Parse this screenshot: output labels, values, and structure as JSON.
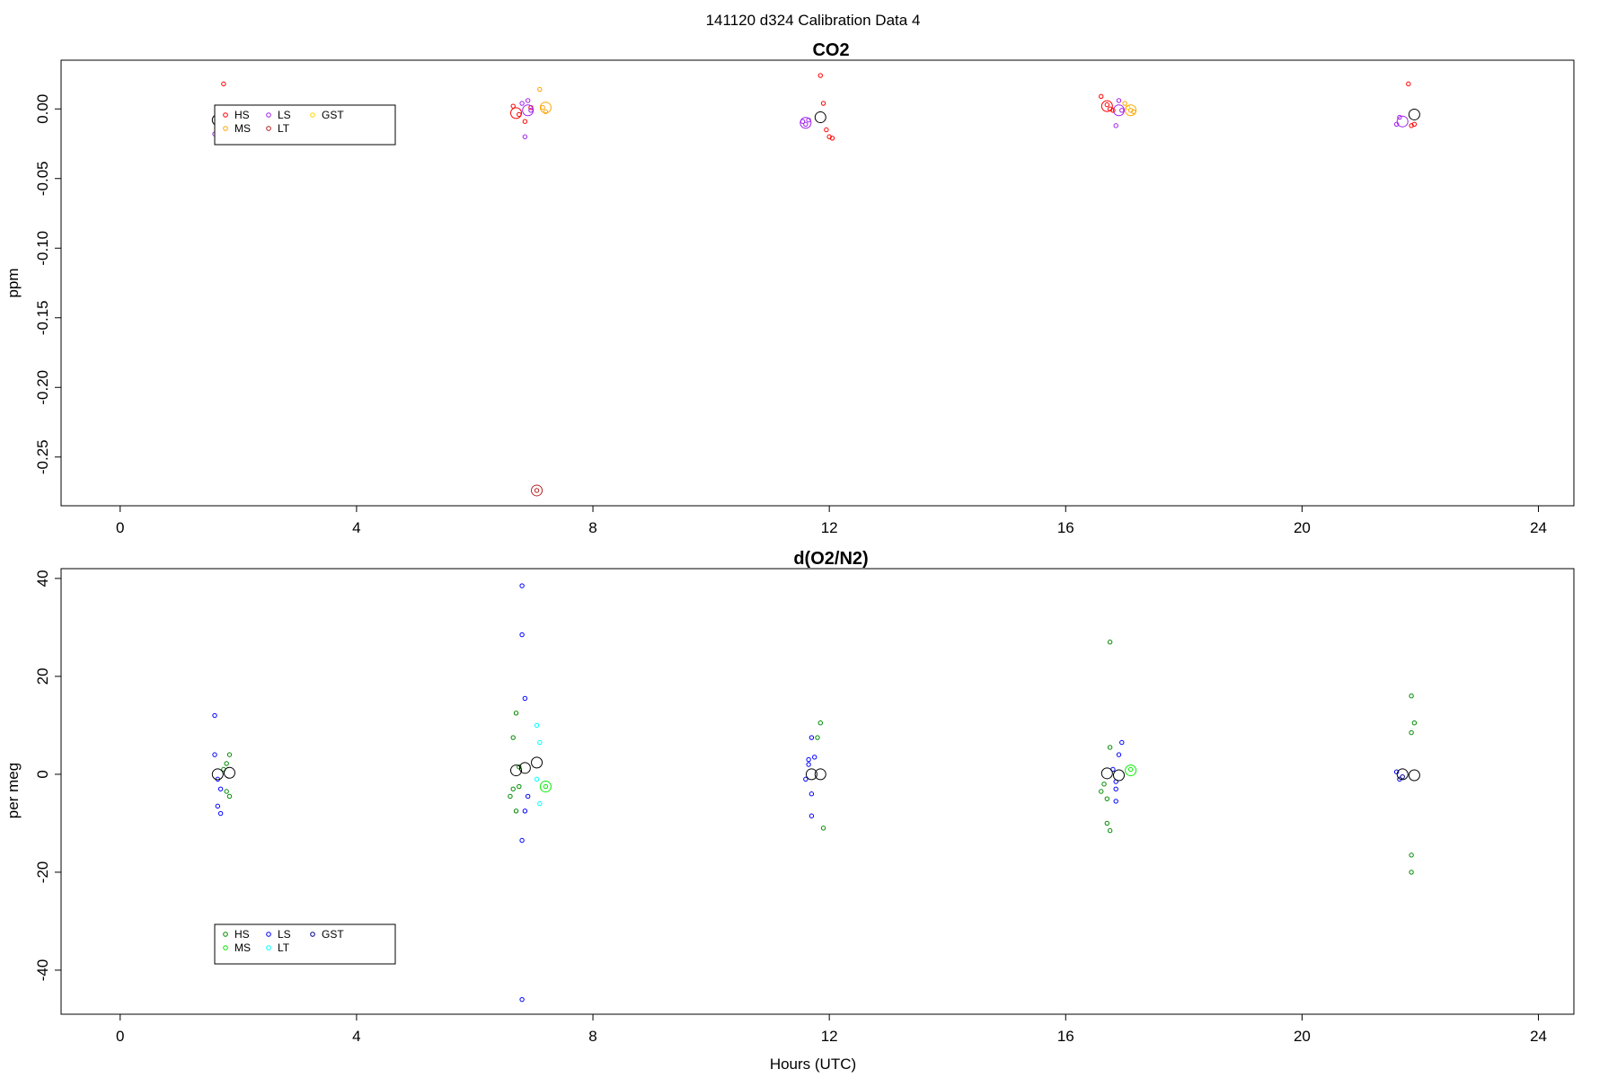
{
  "main_title": "141120   d324   Calibration Data 4",
  "chart_data": [
    {
      "type": "scatter",
      "title": "CO2",
      "xlabel": "",
      "ylabel": "ppm",
      "xlim": [
        -1,
        24.6
      ],
      "ylim": [
        -0.285,
        0.035
      ],
      "x_ticks": [
        0,
        4,
        8,
        12,
        16,
        20,
        24
      ],
      "y_ticks": [
        0.0,
        -0.05,
        -0.1,
        -0.15,
        -0.2,
        -0.25
      ],
      "y_tick_labels": [
        "0.00",
        "-0.05",
        "-0.10",
        "-0.15",
        "-0.20",
        "-0.25"
      ],
      "legend": {
        "placement": "top-left",
        "entries": [
          {
            "label": "HS",
            "color": "#ff0000"
          },
          {
            "label": "MS",
            "color": "#ffa500"
          },
          {
            "label": "LS",
            "color": "#a020f0"
          },
          {
            "label": "LT",
            "color": "#b22222"
          },
          {
            "label": "GST",
            "color": "#ffd700"
          }
        ]
      },
      "series": [
        {
          "name": "HS",
          "color": "#ff0000",
          "points": [
            [
              1.75,
              0.018
            ],
            [
              6.65,
              0.002
            ],
            [
              6.75,
              -0.004
            ],
            [
              6.85,
              -0.009
            ],
            [
              6.95,
              0.001
            ],
            [
              11.85,
              0.024
            ],
            [
              11.9,
              0.004
            ],
            [
              11.95,
              -0.015
            ],
            [
              12.0,
              -0.02
            ],
            [
              12.05,
              -0.021
            ],
            [
              16.6,
              0.009
            ],
            [
              16.7,
              0.003
            ],
            [
              16.75,
              0.0
            ],
            [
              16.8,
              -0.001
            ],
            [
              21.8,
              0.018
            ],
            [
              21.85,
              -0.012
            ],
            [
              21.9,
              -0.011
            ]
          ]
        },
        {
          "name": "MS",
          "color": "#ffa500",
          "points": [
            [
              7.1,
              0.014
            ],
            [
              7.15,
              0.001
            ],
            [
              7.2,
              -0.002
            ],
            [
              17.0,
              0.004
            ],
            [
              17.1,
              -0.001
            ],
            [
              17.15,
              -0.002
            ]
          ]
        },
        {
          "name": "LS",
          "color": "#a020f0",
          "points": [
            [
              1.6,
              -0.018
            ],
            [
              1.65,
              -0.008
            ],
            [
              1.7,
              -0.01
            ],
            [
              6.8,
              0.004
            ],
            [
              6.85,
              -0.02
            ],
            [
              6.9,
              0.006
            ],
            [
              6.95,
              -0.001
            ],
            [
              11.55,
              -0.009
            ],
            [
              11.6,
              -0.011
            ],
            [
              11.65,
              -0.008
            ],
            [
              16.85,
              -0.012
            ],
            [
              16.9,
              0.006
            ],
            [
              16.95,
              -0.001
            ],
            [
              21.6,
              -0.011
            ],
            [
              21.65,
              -0.006
            ]
          ]
        },
        {
          "name": "LT",
          "color": "#b22222",
          "points": [
            [
              7.05,
              -0.274
            ]
          ]
        },
        {
          "name": "GST",
          "color": "#ffd700",
          "points": [
            [
              17.05,
              0.001
            ]
          ]
        }
      ],
      "means": [
        {
          "x": 1.65,
          "y": -0.008,
          "color": "#000000"
        },
        {
          "x": 6.7,
          "y": -0.003,
          "color": "#ff0000"
        },
        {
          "x": 6.9,
          "y": -0.001,
          "color": "#a020f0"
        },
        {
          "x": 7.2,
          "y": 0.001,
          "color": "#ffa500"
        },
        {
          "x": 7.05,
          "y": -0.274,
          "color": "#b22222"
        },
        {
          "x": 11.6,
          "y": -0.01,
          "color": "#a020f0"
        },
        {
          "x": 11.85,
          "y": -0.006,
          "color": "#000000"
        },
        {
          "x": 16.7,
          "y": 0.002,
          "color": "#ff0000"
        },
        {
          "x": 16.9,
          "y": -0.001,
          "color": "#a020f0"
        },
        {
          "x": 17.1,
          "y": -0.001,
          "color": "#ffa500"
        },
        {
          "x": 21.7,
          "y": -0.009,
          "color": "#a020f0"
        },
        {
          "x": 21.9,
          "y": -0.004,
          "color": "#000000"
        }
      ]
    },
    {
      "type": "scatter",
      "title": "d(O2/N2)",
      "xlabel": "Hours (UTC)",
      "ylabel": "per meg",
      "xlim": [
        -1,
        24.6
      ],
      "ylim": [
        -49,
        42
      ],
      "x_ticks": [
        0,
        4,
        8,
        12,
        16,
        20,
        24
      ],
      "y_ticks": [
        40,
        20,
        0,
        -20,
        -40
      ],
      "y_tick_labels": [
        "40",
        "20",
        "0",
        "-20",
        "-40"
      ],
      "legend": {
        "placement": "bottom-left",
        "entries": [
          {
            "label": "HS",
            "color": "#008b00"
          },
          {
            "label": "MS",
            "color": "#00ee00"
          },
          {
            "label": "LS",
            "color": "#0000ff"
          },
          {
            "label": "LT",
            "color": "#00ffff"
          },
          {
            "label": "GST",
            "color": "#00008b"
          }
        ]
      },
      "series": [
        {
          "name": "HS",
          "color": "#008b00",
          "points": [
            [
              1.75,
              1.0
            ],
            [
              1.8,
              2.2
            ],
            [
              1.85,
              4.0
            ],
            [
              1.8,
              -3.5
            ],
            [
              1.85,
              -4.5
            ],
            [
              6.65,
              7.5
            ],
            [
              6.7,
              12.5
            ],
            [
              6.75,
              1.5
            ],
            [
              6.6,
              -4.5
            ],
            [
              6.65,
              -3.0
            ],
            [
              6.7,
              -7.5
            ],
            [
              6.75,
              -2.5
            ],
            [
              11.85,
              10.5
            ],
            [
              11.8,
              7.5
            ],
            [
              11.9,
              -11.0
            ],
            [
              16.65,
              -2.0
            ],
            [
              16.7,
              -5.0
            ],
            [
              16.6,
              -3.5
            ],
            [
              16.75,
              27.0
            ],
            [
              16.7,
              -10.0
            ],
            [
              16.75,
              -11.5
            ],
            [
              16.75,
              5.5
            ],
            [
              21.85,
              16.0
            ],
            [
              21.9,
              10.5
            ],
            [
              21.85,
              8.5
            ],
            [
              21.85,
              -16.5
            ],
            [
              21.85,
              -20.0
            ]
          ]
        },
        {
          "name": "MS",
          "color": "#00ee00",
          "points": [
            [
              7.2,
              -2.5
            ],
            [
              17.1,
              1.0
            ]
          ]
        },
        {
          "name": "LS",
          "color": "#0000ff",
          "points": [
            [
              1.6,
              12.0
            ],
            [
              1.6,
              4.0
            ],
            [
              1.65,
              -1.0
            ],
            [
              1.7,
              -3.0
            ],
            [
              1.65,
              -6.5
            ],
            [
              1.7,
              -8.0
            ],
            [
              6.8,
              38.5
            ],
            [
              6.8,
              28.5
            ],
            [
              6.85,
              15.5
            ],
            [
              6.8,
              -13.5
            ],
            [
              6.85,
              -7.5
            ],
            [
              6.9,
              -4.5
            ],
            [
              6.8,
              -46.0
            ],
            [
              11.65,
              3.0
            ],
            [
              11.7,
              7.5
            ],
            [
              11.75,
              3.5
            ],
            [
              11.65,
              2.0
            ],
            [
              11.6,
              -1.0
            ],
            [
              11.7,
              -4.0
            ],
            [
              11.7,
              -8.5
            ],
            [
              16.8,
              1.0
            ],
            [
              16.85,
              -3.0
            ],
            [
              16.9,
              4.0
            ],
            [
              16.95,
              6.5
            ],
            [
              16.85,
              -5.5
            ],
            [
              16.85,
              -1.5
            ],
            [
              21.6,
              0.5
            ],
            [
              21.65,
              -1.0
            ]
          ]
        },
        {
          "name": "LT",
          "color": "#00ffff",
          "points": [
            [
              7.05,
              10.0
            ],
            [
              7.1,
              6.5
            ],
            [
              7.1,
              -6.0
            ],
            [
              7.05,
              -1.0
            ]
          ]
        },
        {
          "name": "GST",
          "color": "#00008b",
          "points": [
            [
              21.7,
              -0.5
            ]
          ]
        }
      ],
      "means": [
        {
          "x": 1.65,
          "y": 0.0,
          "color": "#000000"
        },
        {
          "x": 1.85,
          "y": 0.3,
          "color": "#000000"
        },
        {
          "x": 6.7,
          "y": 0.8,
          "color": "#000000"
        },
        {
          "x": 6.85,
          "y": 1.3,
          "color": "#000000"
        },
        {
          "x": 7.05,
          "y": 2.4,
          "color": "#000000"
        },
        {
          "x": 7.2,
          "y": -2.5,
          "color": "#00ee00"
        },
        {
          "x": 11.7,
          "y": 0.0,
          "color": "#000000"
        },
        {
          "x": 11.85,
          "y": 0.0,
          "color": "#000000"
        },
        {
          "x": 16.7,
          "y": 0.2,
          "color": "#000000"
        },
        {
          "x": 16.9,
          "y": -0.2,
          "color": "#000000"
        },
        {
          "x": 17.1,
          "y": 0.8,
          "color": "#00ee00"
        },
        {
          "x": 21.7,
          "y": 0.0,
          "color": "#000000"
        },
        {
          "x": 21.9,
          "y": -0.2,
          "color": "#000000"
        }
      ]
    }
  ]
}
